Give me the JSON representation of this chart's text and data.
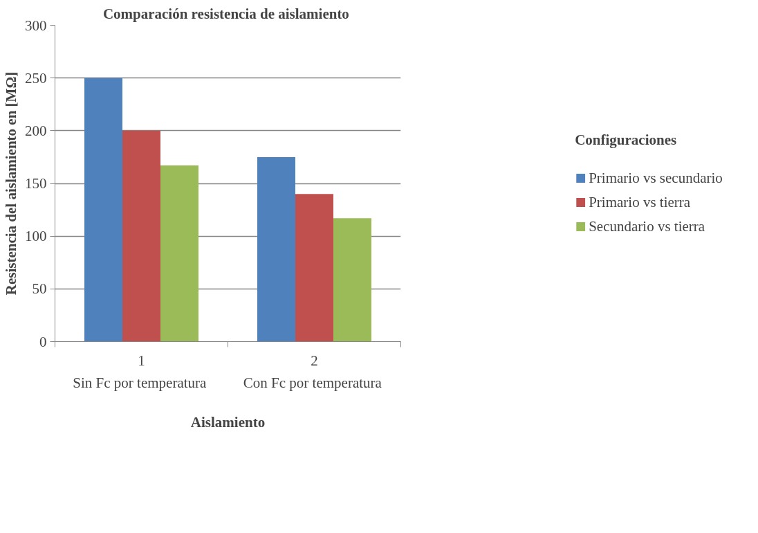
{
  "chart_data": {
    "type": "bar",
    "title": "Comparación resistencia  de aislamiento",
    "xlabel": "Aislamiento",
    "ylabel": "Resistencia del aislamiento en [MΩ]",
    "legend_title": "Configuraciones",
    "categories": [
      "1",
      "2"
    ],
    "series": [
      {
        "name": "Primario vs secundario",
        "color": "#4f81bd",
        "values": [
          250,
          175
        ]
      },
      {
        "name": "Primario vs tierra",
        "color": "#c0504d",
        "values": [
          200,
          140
        ]
      },
      {
        "name": "Secundario vs tierra",
        "color": "#9bbb59",
        "values": [
          167,
          117
        ]
      }
    ],
    "annotations": [
      "Sin  Fc por temperatura",
      "Con  Fc por temperatura"
    ],
    "ylim": [
      0,
      300
    ],
    "yticks": [
      0,
      50,
      100,
      150,
      200,
      250,
      300
    ],
    "grid": "y",
    "legend": "right"
  }
}
